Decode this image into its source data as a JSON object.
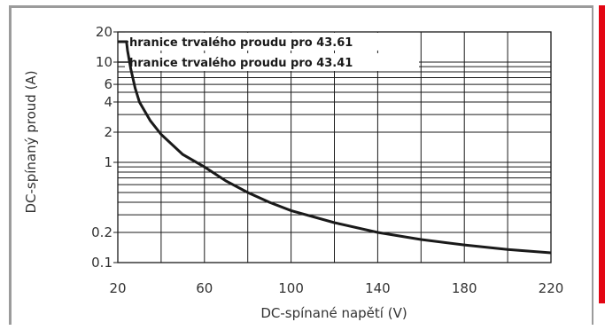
{
  "colors": {
    "frame": "#9b9b9b",
    "accent": "#e30613",
    "curve": "#1a1a1a",
    "grid": "#1a1a1a"
  },
  "chart_data": {
    "type": "line",
    "title": "",
    "xlabel": "DC-spínané napětí (V)",
    "ylabel": "DC-spínaný proud (A)",
    "xlim": [
      20,
      220
    ],
    "ylim": [
      0.1,
      20
    ],
    "yscale": "log",
    "grid": true,
    "x_ticks": [
      20,
      60,
      100,
      140,
      180,
      220
    ],
    "x_tick_labels": [
      "20",
      "60",
      "100",
      "140",
      "180",
      "220"
    ],
    "y_ticks": [
      0.1,
      0.2,
      1,
      2,
      4,
      6,
      10,
      20
    ],
    "y_tick_labels": [
      "0.1",
      "0.2",
      "1",
      "2",
      "4",
      "6",
      "10",
      "20"
    ],
    "series": [
      {
        "x": [
          24,
          24.5,
          26,
          28,
          30,
          35,
          40,
          50,
          60,
          70,
          80,
          90,
          100,
          120,
          140,
          160,
          180,
          200,
          220
        ],
        "y": [
          16,
          13,
          8.5,
          5.5,
          4,
          2.6,
          1.9,
          1.2,
          0.9,
          0.65,
          0.5,
          0.4,
          0.33,
          0.25,
          0.2,
          0.17,
          0.15,
          0.135,
          0.125
        ]
      }
    ],
    "annotations": [
      {
        "text": "hranice trvalého proudu pro 43.61",
        "y": 16
      },
      {
        "text": "hranice trvalého proudu pro 43.41",
        "y": 10
      }
    ]
  }
}
